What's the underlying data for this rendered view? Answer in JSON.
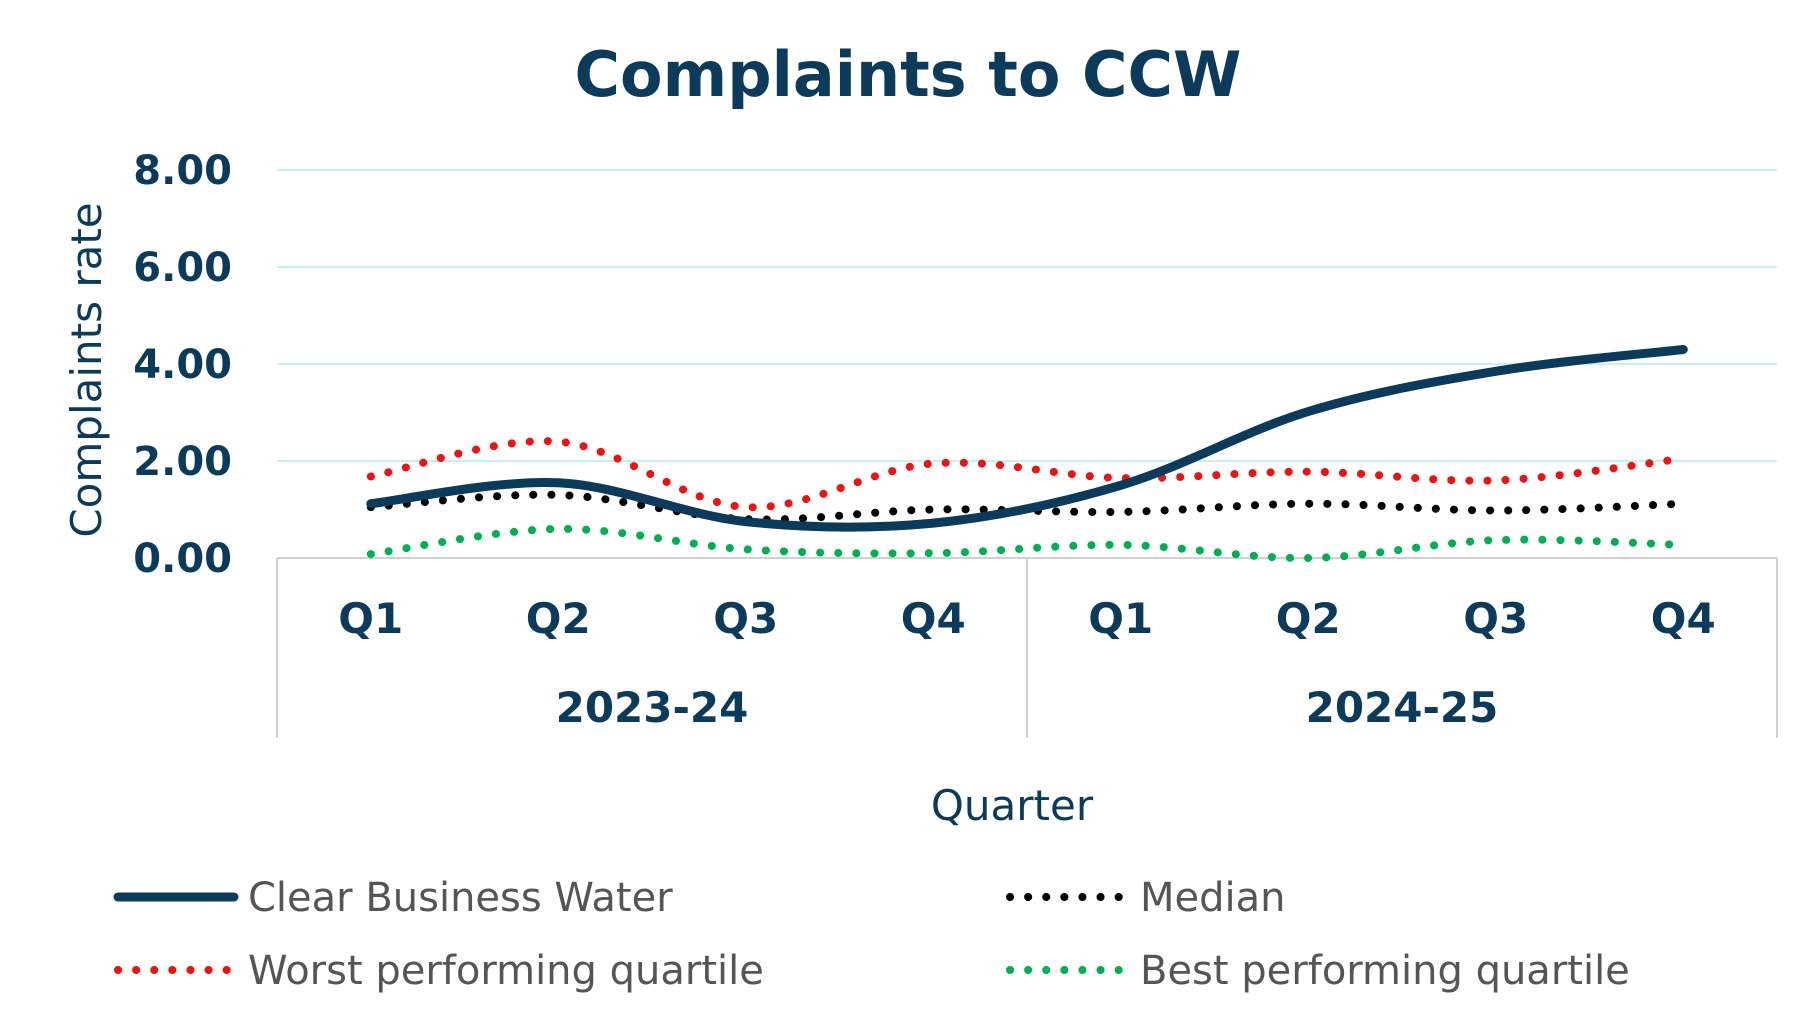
{
  "chart_data": {
    "type": "line",
    "title": "Complaints to CCW",
    "xlabel": "Quarter",
    "ylabel": "Complaints rate",
    "ylim": [
      0,
      8
    ],
    "yticks": [
      "8.00",
      "6.00",
      "4.00",
      "2.00",
      "0.00"
    ],
    "ytick_values": [
      8,
      6,
      4,
      2,
      0
    ],
    "categories": [
      "Q1",
      "Q2",
      "Q3",
      "Q4",
      "Q1",
      "Q2",
      "Q3",
      "Q4"
    ],
    "groups": [
      {
        "label": "2023-24"
      },
      {
        "label": "2024-25"
      }
    ],
    "grid": true,
    "legend_position": "bottom",
    "series": [
      {
        "name": "Clear Business Water",
        "values": [
          1.12,
          1.55,
          0.75,
          0.72,
          1.5,
          3.02,
          3.85,
          4.3
        ],
        "color": "#0b3a5a",
        "style": "solid"
      },
      {
        "name": "Median",
        "values": [
          1.05,
          1.3,
          0.8,
          1.0,
          0.95,
          1.12,
          0.98,
          1.12
        ],
        "color": "#000000",
        "style": "dotted"
      },
      {
        "name": "Worst performing quartile",
        "values": [
          1.68,
          2.4,
          1.05,
          1.95,
          1.65,
          1.78,
          1.6,
          2.05
        ],
        "color": "#ee1111",
        "style": "dotted"
      },
      {
        "name": "Best performing quartile",
        "values": [
          0.08,
          0.6,
          0.18,
          0.1,
          0.27,
          0.0,
          0.37,
          0.27
        ],
        "color": "#00b050",
        "style": "dotted"
      }
    ]
  }
}
